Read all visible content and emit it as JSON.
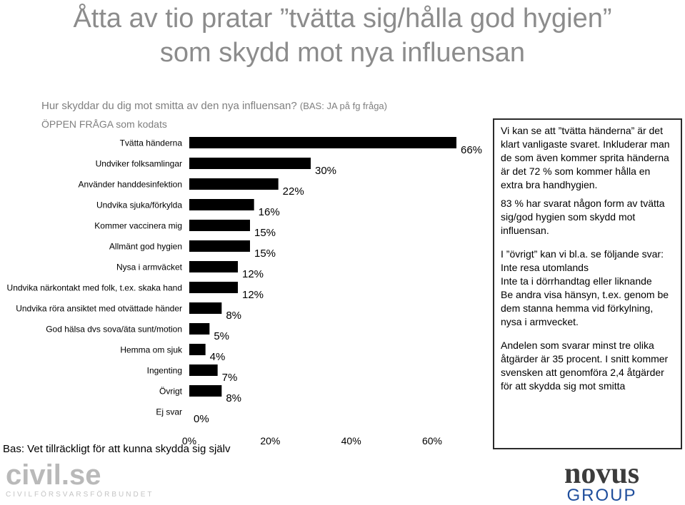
{
  "title_line1": "Åtta av tio pratar ”tvätta sig/hålla god hygien”",
  "title_line2": "som skydd mot nya influensan",
  "question": "Hur skyddar du dig mot smitta av den nya influensan?",
  "question_basis": "(BAS: JA på fg fråga)",
  "open_question_note": "ÖPPEN FRÅGA som kodats",
  "basis_note": "Bas: Vet tillräckligt för att kunna skydda sig själv",
  "chart_data": {
    "type": "bar",
    "orientation": "horizontal",
    "categories": [
      "Tvätta händerna",
      "Undviker folksamlingar",
      "Använder handdesinfektion",
      "Undvika sjuka/förkylda",
      "Kommer vaccinera mig",
      "Allmänt god hygien",
      "Nysa i armväcket",
      "Undvika närkontakt med folk, t.ex. skaka hand",
      "Undvika röra ansiktet med otvättade händer",
      "God hälsa dvs sova/äta sunt/motion",
      "Hemma om sjuk",
      "Ingenting",
      "Övrigt",
      "Ej svar"
    ],
    "values": [
      66,
      30,
      22,
      16,
      15,
      15,
      12,
      12,
      8,
      5,
      4,
      7,
      8,
      0
    ],
    "value_labels": [
      "66%",
      "30%",
      "22%",
      "16%",
      "15%",
      "15%",
      "12%",
      "12%",
      "8%",
      "5%",
      "4%",
      "7%",
      "8%",
      "0%"
    ],
    "xlim": [
      0,
      60
    ],
    "x_ticks": [
      "0%",
      "20%",
      "40%",
      "60%"
    ],
    "bar_color": "#000000",
    "grid": false,
    "legend": "none"
  },
  "info_box": {
    "p1": "Vi kan se att ”tvätta händerna” är det klart vanligaste svaret. Inkluderar man de som även kommer sprita händerna är det 72 % som kommer hålla en extra bra handhygien.",
    "p2": "83 % har svarat någon form av tvätta sig/god hygien som skydd mot influensan.",
    "p3": "I ”övrigt” kan vi bl.a. se följande svar:",
    "p3_items": [
      "Inte resa utomlands",
      "Inte ta i dörrhandtag eller liknande",
      "Be andra visa hänsyn, t.ex. genom be dem stanna hemma vid förkylning, nysa i armvecket."
    ],
    "p4": "Andelen som svarar minst tre olika åtgärder är 35 procent. I snitt kommer svensken att genomföra 2,4 åtgärder för att skydda sig mot smitta"
  },
  "logo_left": {
    "word": "civil.se",
    "sub": "CIVILFÖRSVARSFÖRBUNDET"
  },
  "logo_right": {
    "word": "novus",
    "sub": "GROUP"
  }
}
